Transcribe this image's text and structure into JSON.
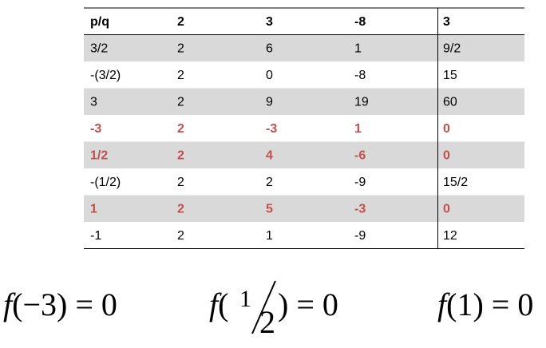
{
  "table": {
    "header": [
      "p/q",
      "2",
      "3",
      "-8",
      "3"
    ],
    "rows": [
      [
        "3/2",
        "2",
        "6",
        "1",
        "9/2"
      ],
      [
        "-(3/2)",
        "2",
        "0",
        "-8",
        "15"
      ],
      [
        "3",
        "2",
        "9",
        "19",
        "60"
      ],
      [
        "-3",
        "2",
        "-3",
        "1",
        "0"
      ],
      [
        "1/2",
        "2",
        "4",
        "-6",
        "0"
      ],
      [
        "-(1/2)",
        "2",
        "2",
        "-9",
        "15/2"
      ],
      [
        "1",
        "2",
        "5",
        "-3",
        "0"
      ],
      [
        "-1",
        "2",
        "1",
        "-9",
        "12"
      ]
    ]
  },
  "equations": [
    {
      "func": "f",
      "args": "(−3)",
      "rhs": "= 0"
    },
    {
      "func": "f",
      "open": "(",
      "num": "1",
      "den": "2",
      "close": ")",
      "rhs": "= 0"
    },
    {
      "func": "f",
      "args": "(1)",
      "rhs": "= 0"
    }
  ]
}
